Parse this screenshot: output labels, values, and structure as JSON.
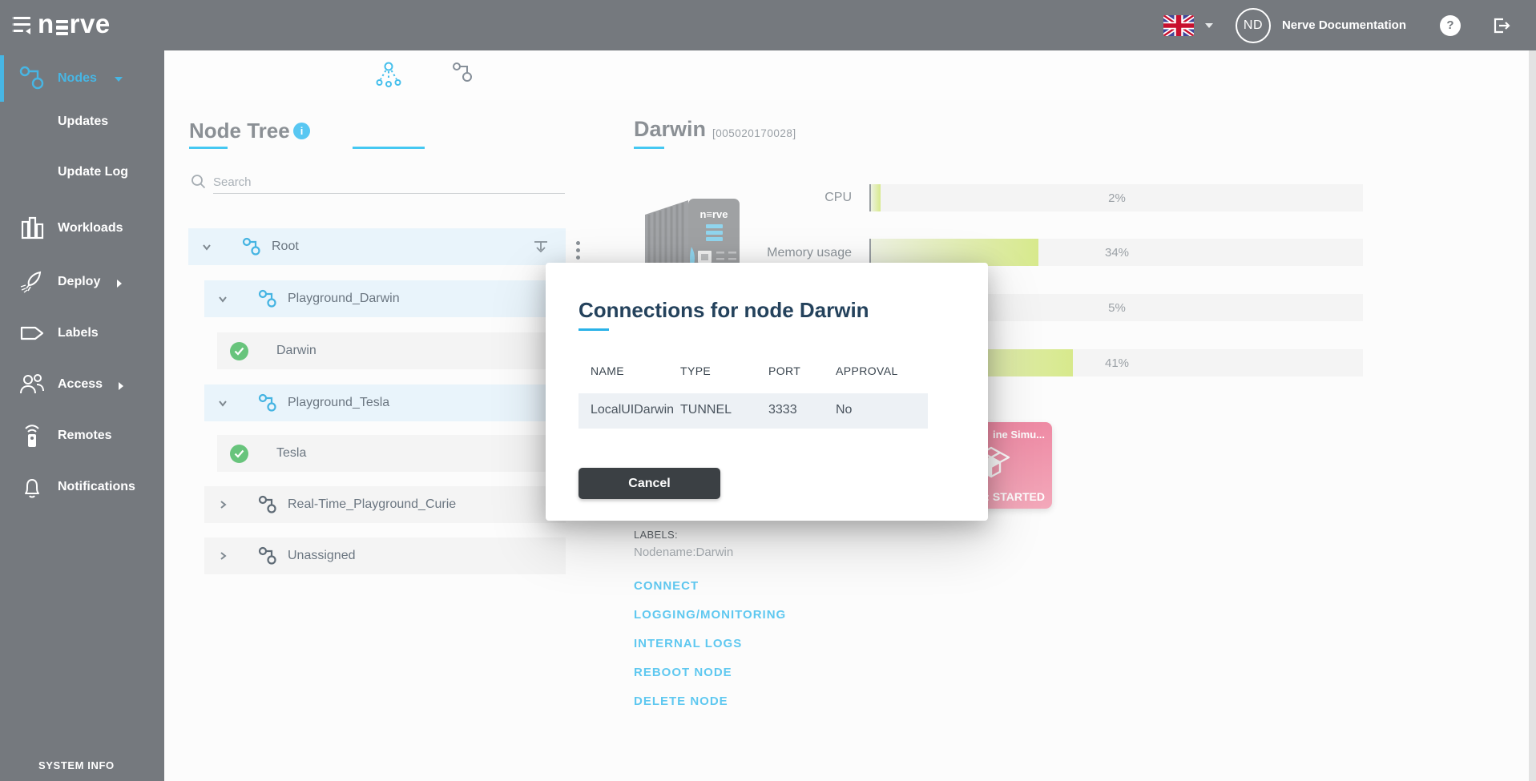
{
  "header": {
    "logo_prefix": "n",
    "logo_suffix": "rve",
    "user_initials": "ND",
    "user_name": "Nerve Documentation",
    "help_glyph": "?"
  },
  "sidebar": {
    "items": [
      {
        "label": "Nodes",
        "active": true,
        "caret": "down"
      },
      {
        "label": "Updates"
      },
      {
        "label": "Update Log"
      },
      {
        "label": "Workloads"
      },
      {
        "label": "Deploy",
        "caret": "right"
      },
      {
        "label": "Labels"
      },
      {
        "label": "Access",
        "caret": "right"
      },
      {
        "label": "Remotes"
      },
      {
        "label": "Notifications"
      }
    ],
    "footer": "SYSTEM INFO"
  },
  "tree": {
    "title": "Node Tree",
    "info_glyph": "i",
    "search_placeholder": "Search",
    "rows": [
      {
        "label": "Root",
        "type": "group",
        "state": "expanded"
      },
      {
        "label": "Playground_Darwin",
        "type": "group",
        "state": "expanded"
      },
      {
        "label": "Darwin",
        "type": "node",
        "status": "online"
      },
      {
        "label": "Playground_Tesla",
        "type": "group",
        "state": "expanded"
      },
      {
        "label": "Tesla",
        "type": "node",
        "status": "online"
      },
      {
        "label": "Real-Time_Playground_Curie",
        "type": "group",
        "state": "collapsed"
      },
      {
        "label": "Unassigned",
        "type": "group",
        "state": "collapsed"
      }
    ]
  },
  "detail": {
    "title": "Darwin",
    "serial": "[005020170028]",
    "metrics": [
      {
        "label": "CPU",
        "value": 2,
        "display": "2%"
      },
      {
        "label": "Memory usage",
        "value": 34,
        "display": "34%"
      },
      {
        "label": "",
        "value": 5,
        "display": "5%"
      },
      {
        "label": "",
        "value": 41,
        "display": "41%"
      }
    ],
    "workload_tile": {
      "name_visible": "ine Simu...",
      "status_visible": "s: STARTED"
    },
    "labels_heading": "LABELS:",
    "labels_value": "Nodename:Darwin",
    "actions": [
      "CONNECT",
      "LOGGING/MONITORING",
      "INTERNAL LOGS",
      "REBOOT NODE",
      "DELETE NODE"
    ]
  },
  "modal": {
    "title": "Connections for node Darwin",
    "columns": [
      "NAME",
      "TYPE",
      "PORT",
      "APPROVAL"
    ],
    "rows": [
      {
        "name": "LocalUIDarwin",
        "type": "TUNNEL",
        "port": "3333",
        "approval": "No"
      }
    ],
    "cancel_label": "Cancel"
  },
  "colors": {
    "chrome_gray": "#75797e",
    "accent_blue": "#47b6e4",
    "cyan_underline": "#45c8f2",
    "link_blue": "#5fc8f0",
    "bar_fill_green": "#d7e98c",
    "tree_row_blue": "#e9f4fb",
    "tree_row_gray": "#f4f4f4",
    "check_green": "#68c47c",
    "tile_pink": "#ee8aa4",
    "button_dark": "#3b4044",
    "modal_title_navy": "#24425c"
  }
}
